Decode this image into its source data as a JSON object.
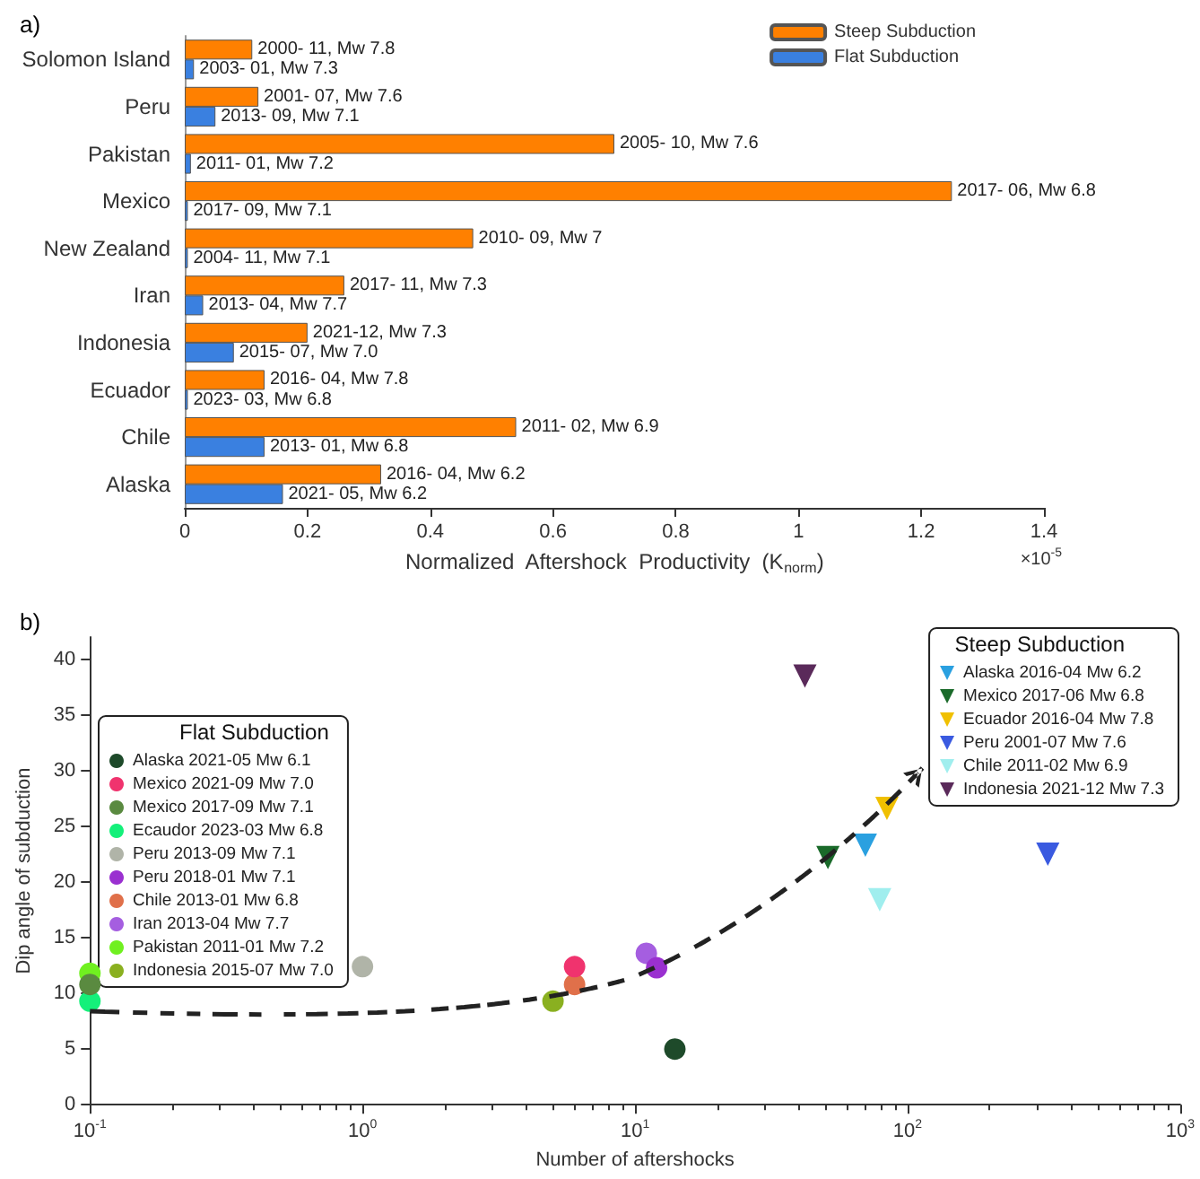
{
  "chart_data": [
    {
      "type": "bar",
      "title": "a)",
      "orientation": "horizontal",
      "xlabel": "Normalized  Aftershock  Productivity  (K$_{norm}$)",
      "annotations": [
        "×10$^{-5}$"
      ],
      "categories": [
        "Solomon Island",
        "Peru",
        "Pakistan",
        "Mexico",
        "New Zealand",
        "Iran",
        "Indonesia",
        "Ecuador",
        "Chile",
        "Alaska"
      ],
      "series": [
        {
          "name": "Steep Subduction",
          "color": "#ff8000",
          "values": [
            0.11,
            0.12,
            0.7,
            1.25,
            0.47,
            0.26,
            0.2,
            0.13,
            0.54,
            0.32
          ],
          "value_labels": [
            "2000- 11, Mw 7.8",
            "2001- 07, Mw 7.6",
            "2005- 10, Mw 7.6",
            "2017- 06, Mw 6.8",
            "2010- 09, Mw 7",
            "2017- 11, Mw 7.3",
            "2021-12, Mw 7.3",
            "2016- 04, Mw 7.8",
            "2011- 02, Mw 6.9",
            "2016- 04, Mw 6.2"
          ]
        },
        {
          "name": "Flat Subduction",
          "color": "#3a80e0",
          "values": [
            0.015,
            0.05,
            0.01,
            0.005,
            0.005,
            0.03,
            0.08,
            0.005,
            0.13,
            0.16
          ],
          "value_labels": [
            "2003- 01, Mw 7.3",
            "2013- 09, Mw 7.1",
            "2011- 01, Mw 7.2",
            "2017- 09, Mw 7.1",
            "2004- 11, Mw 7.1",
            "2013- 04, Mw 7.7",
            "2015- 07, Mw 7.0",
            "2023- 03, Mw 6.8",
            "2013- 01, Mw 6.8",
            "2021- 05, Mw 6.2"
          ]
        }
      ],
      "xlim": [
        0,
        1.4
      ],
      "xticks": [
        0,
        0.2,
        0.4,
        0.6,
        0.8,
        1,
        1.2,
        1.4
      ],
      "legend": "top right"
    },
    {
      "type": "scatter",
      "title": "b)",
      "xlabel": "Number of aftershocks",
      "ylabel": "Dip angle of subduction",
      "log": "x",
      "legend": "top left",
      "annotations": [
        "Flat Subduction",
        "Steep Subduction"
      ],
      "xlim": [
        0.1,
        1000
      ],
      "xticks": [
        {
          "value": 0.1,
          "label": "10$^{-1}$"
        },
        {
          "value": 1,
          "label": "10$^{0}$"
        },
        {
          "value": 10,
          "label": "10$^{1}$"
        },
        {
          "value": 100,
          "label": "10$^{2}$"
        },
        {
          "value": 1000,
          "label": "10$^{3}$"
        }
      ],
      "ylim": [
        0,
        42
      ],
      "yticks": [
        0,
        5,
        10,
        15,
        20,
        25,
        30,
        35,
        40
      ],
      "series": [
        {
          "name": "Alaska 2021-05 Mw 6.1",
          "color": "#1e4a2a",
          "marker": "circle",
          "x": [
            14
          ],
          "values": [
            5.0
          ]
        },
        {
          "name": "Mexico 2021-09 Mw 7.0",
          "color": "#f0336e",
          "marker": "circle",
          "x": [
            6
          ],
          "values": [
            12.4
          ]
        },
        {
          "name": "Mexico 2017-09 Mw 7.1",
          "color": "#5a8a40",
          "marker": "circle",
          "x": [
            0.1
          ],
          "values": [
            10.8
          ]
        },
        {
          "name": "Ecaudor 2023-03 Mw 6.8",
          "color": "#14f07a",
          "marker": "circle",
          "x": [
            0.1
          ],
          "values": [
            9.3
          ]
        },
        {
          "name": "Peru 2013-09 Mw 7.1",
          "color": "#b0b4a8",
          "marker": "circle",
          "x": [
            1
          ],
          "values": [
            12.4
          ]
        },
        {
          "name": "Peru 2018-01 Mw 7.1",
          "color": "#9a30d0",
          "marker": "circle",
          "x": [
            12
          ],
          "values": [
            12.3
          ]
        },
        {
          "name": "Chile 2013-01 Mw 6.8",
          "color": "#e0704a",
          "marker": "circle",
          "x": [
            6
          ],
          "values": [
            10.8
          ]
        },
        {
          "name": "Iran 2013-04 Mw 7.7",
          "color": "#a55ee0",
          "marker": "circle",
          "x": [
            11
          ],
          "values": [
            13.6
          ]
        },
        {
          "name": "Pakistan 2011-01 Mw 7.2",
          "color": "#70f020",
          "marker": "circle",
          "x": [
            0.1
          ],
          "values": [
            11.8
          ]
        },
        {
          "name": "Indonesia 2015-07 Mw 7.0",
          "color": "#8ab020",
          "marker": "circle",
          "x": [
            5
          ],
          "values": [
            9.3
          ]
        },
        {
          "name": "Alaska 2016-04 Mw 6.2",
          "color": "#2aa0e0",
          "marker": "triangle",
          "x": [
            70
          ],
          "values": [
            23.3
          ]
        },
        {
          "name": "Mexico 2017-06 Mw 6.8",
          "color": "#1a6a2a",
          "marker": "triangle",
          "x": [
            51
          ],
          "values": [
            22.2
          ]
        },
        {
          "name": "Ecuador 2016-04 Mw 7.8",
          "color": "#f0c000",
          "marker": "triangle",
          "x": [
            84
          ],
          "values": [
            26.6
          ]
        },
        {
          "name": "Peru 2001-07 Mw 7.6",
          "color": "#3a5ae0",
          "marker": "triangle",
          "x": [
            327
          ],
          "values": [
            22.5
          ]
        },
        {
          "name": "Chile 2011-02 Mw 6.9",
          "color": "#a0eeee",
          "marker": "triangle",
          "x": [
            79
          ],
          "values": [
            18.4
          ]
        },
        {
          "name": "Indonesia 2021-12 Mw 7.3",
          "color": "#5a2a5a",
          "marker": "triangle",
          "x": [
            42
          ],
          "values": [
            38.5
          ]
        }
      ]
    }
  ]
}
